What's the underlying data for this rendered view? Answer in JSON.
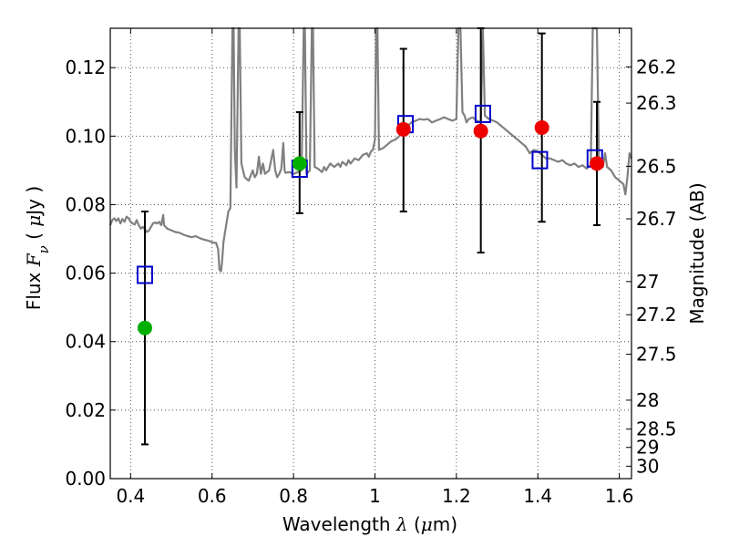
{
  "chart_data": {
    "type": "scatter",
    "title": "",
    "xlabel": "Wavelength  λ (μm)",
    "xlabel_parts": [
      "Wavelength  ",
      "λ",
      " (",
      "μ",
      "m)"
    ],
    "ylabel": "Flux  Fν  ( μJy )",
    "ylabel_parts": [
      "Flux  ",
      "F",
      "ν",
      "  ( ",
      "μ",
      "Jy )"
    ],
    "y2label": "Magnitude (AB)",
    "xlim": [
      0.35,
      1.63
    ],
    "ylim": [
      0.0,
      0.1315
    ],
    "xticks": [
      {
        "value": 0.4,
        "label": "0.4"
      },
      {
        "value": 0.6,
        "label": "0.6"
      },
      {
        "value": 0.8,
        "label": "0.8"
      },
      {
        "value": 1.0,
        "label": "1"
      },
      {
        "value": 1.2,
        "label": "1.2"
      },
      {
        "value": 1.4,
        "label": "1.4"
      },
      {
        "value": 1.6,
        "label": "1.6"
      }
    ],
    "yticks": [
      {
        "value": 0.0,
        "label": "0.00"
      },
      {
        "value": 0.02,
        "label": "0.02"
      },
      {
        "value": 0.04,
        "label": "0.04"
      },
      {
        "value": 0.06,
        "label": "0.06"
      },
      {
        "value": 0.08,
        "label": "0.08"
      },
      {
        "value": 0.1,
        "label": "0.10"
      },
      {
        "value": 0.12,
        "label": "0.12"
      }
    ],
    "y2ticks": [
      {
        "value": 26.2,
        "label": "26.2"
      },
      {
        "value": 26.3,
        "label": "26.3"
      },
      {
        "value": 26.5,
        "label": "26.5"
      },
      {
        "value": 26.7,
        "label": "26.7"
      },
      {
        "value": 27,
        "label": "27"
      },
      {
        "value": 27.2,
        "label": "27.2"
      },
      {
        "value": 27.5,
        "label": "27.5"
      },
      {
        "value": 28,
        "label": "28"
      },
      {
        "value": 28.5,
        "label": "28.5"
      },
      {
        "value": 29,
        "label": "29"
      },
      {
        "value": 30,
        "label": "30"
      }
    ],
    "grid": true,
    "colors": {
      "spectrum": "#808080",
      "model": "#0000cc",
      "obs_green": "#00b000",
      "obs_red": "#ee0000",
      "errorbar": "#000000"
    },
    "spectrum": [
      [
        0.35,
        0.074
      ],
      [
        0.355,
        0.0755
      ],
      [
        0.36,
        0.076
      ],
      [
        0.365,
        0.0752
      ],
      [
        0.37,
        0.076
      ],
      [
        0.375,
        0.0745
      ],
      [
        0.38,
        0.0758
      ],
      [
        0.385,
        0.075
      ],
      [
        0.39,
        0.0765
      ],
      [
        0.395,
        0.076
      ],
      [
        0.4,
        0.075
      ],
      [
        0.405,
        0.0745
      ],
      [
        0.41,
        0.0742
      ],
      [
        0.415,
        0.0755
      ],
      [
        0.42,
        0.074
      ],
      [
        0.425,
        0.073
      ],
      [
        0.43,
        0.0735
      ],
      [
        0.435,
        0.0728
      ],
      [
        0.44,
        0.072
      ],
      [
        0.445,
        0.0725
      ],
      [
        0.45,
        0.0735
      ],
      [
        0.455,
        0.0745
      ],
      [
        0.46,
        0.0748
      ],
      [
        0.465,
        0.0745
      ],
      [
        0.47,
        0.075
      ],
      [
        0.475,
        0.074
      ],
      [
        0.48,
        0.077
      ],
      [
        0.482,
        0.074
      ],
      [
        0.49,
        0.073
      ],
      [
        0.5,
        0.0725
      ],
      [
        0.51,
        0.072
      ],
      [
        0.52,
        0.0718
      ],
      [
        0.53,
        0.0712
      ],
      [
        0.54,
        0.0708
      ],
      [
        0.55,
        0.0705
      ],
      [
        0.56,
        0.0708
      ],
      [
        0.57,
        0.0702
      ],
      [
        0.58,
        0.0698
      ],
      [
        0.59,
        0.0695
      ],
      [
        0.6,
        0.069
      ],
      [
        0.61,
        0.0688
      ],
      [
        0.615,
        0.067
      ],
      [
        0.618,
        0.061
      ],
      [
        0.622,
        0.0605
      ],
      [
        0.625,
        0.064
      ],
      [
        0.628,
        0.069
      ],
      [
        0.632,
        0.072
      ],
      [
        0.64,
        0.078
      ],
      [
        0.645,
        0.079
      ],
      [
        0.65,
        0.1315
      ],
      [
        0.653,
        0.1315
      ],
      [
        0.656,
        0.096
      ],
      [
        0.66,
        0.085
      ],
      [
        0.665,
        0.1315
      ],
      [
        0.668,
        0.1315
      ],
      [
        0.672,
        0.092
      ],
      [
        0.68,
        0.088
      ],
      [
        0.69,
        0.087
      ],
      [
        0.7,
        0.09
      ],
      [
        0.705,
        0.088
      ],
      [
        0.71,
        0.089
      ],
      [
        0.715,
        0.094
      ],
      [
        0.72,
        0.089
      ],
      [
        0.725,
        0.092
      ],
      [
        0.73,
        0.089
      ],
      [
        0.74,
        0.09
      ],
      [
        0.75,
        0.096
      ],
      [
        0.755,
        0.09
      ],
      [
        0.76,
        0.088
      ],
      [
        0.765,
        0.089
      ],
      [
        0.77,
        0.0905
      ],
      [
        0.775,
        0.098
      ],
      [
        0.778,
        0.09
      ],
      [
        0.78,
        0.0893
      ],
      [
        0.79,
        0.0895
      ],
      [
        0.8,
        0.089
      ],
      [
        0.81,
        0.0895
      ],
      [
        0.82,
        0.09
      ],
      [
        0.825,
        0.1315
      ],
      [
        0.828,
        0.1315
      ],
      [
        0.832,
        0.089
      ],
      [
        0.84,
        0.09
      ],
      [
        0.845,
        0.1315
      ],
      [
        0.848,
        0.1315
      ],
      [
        0.852,
        0.091
      ],
      [
        0.86,
        0.0905
      ],
      [
        0.87,
        0.0895
      ],
      [
        0.875,
        0.091
      ],
      [
        0.88,
        0.09
      ],
      [
        0.89,
        0.092
      ],
      [
        0.9,
        0.091
      ],
      [
        0.91,
        0.092
      ],
      [
        0.915,
        0.091
      ],
      [
        0.92,
        0.0925
      ],
      [
        0.93,
        0.0915
      ],
      [
        0.935,
        0.093
      ],
      [
        0.94,
        0.092
      ],
      [
        0.95,
        0.0935
      ],
      [
        0.96,
        0.093
      ],
      [
        0.97,
        0.0945
      ],
      [
        0.98,
        0.095
      ],
      [
        0.985,
        0.094
      ],
      [
        0.99,
        0.0955
      ],
      [
        0.995,
        0.096
      ],
      [
        1.0,
        0.099
      ],
      [
        1.003,
        0.1315
      ],
      [
        1.006,
        0.1315
      ],
      [
        1.01,
        0.096
      ],
      [
        1.02,
        0.0965
      ],
      [
        1.03,
        0.0975
      ],
      [
        1.04,
        0.0985
      ],
      [
        1.05,
        0.099
      ],
      [
        1.06,
        0.1
      ],
      [
        1.07,
        0.102
      ],
      [
        1.08,
        0.103
      ],
      [
        1.09,
        0.104
      ],
      [
        1.1,
        0.1045
      ],
      [
        1.11,
        0.105
      ],
      [
        1.12,
        0.1048
      ],
      [
        1.13,
        0.105
      ],
      [
        1.14,
        0.104
      ],
      [
        1.15,
        0.1045
      ],
      [
        1.16,
        0.105
      ],
      [
        1.17,
        0.1055
      ],
      [
        1.18,
        0.105
      ],
      [
        1.19,
        0.1045
      ],
      [
        1.2,
        0.105
      ],
      [
        1.205,
        0.1315
      ],
      [
        1.21,
        0.1315
      ],
      [
        1.215,
        0.107
      ],
      [
        1.22,
        0.106
      ],
      [
        1.225,
        0.104
      ],
      [
        1.23,
        0.105
      ],
      [
        1.24,
        0.1055
      ],
      [
        1.25,
        0.1045
      ],
      [
        1.26,
        0.104
      ],
      [
        1.265,
        0.1315
      ],
      [
        1.27,
        0.106
      ],
      [
        1.28,
        0.105
      ],
      [
        1.29,
        0.1045
      ],
      [
        1.3,
        0.104
      ],
      [
        1.31,
        0.103
      ],
      [
        1.32,
        0.102
      ],
      [
        1.33,
        0.101
      ],
      [
        1.34,
        0.1
      ],
      [
        1.35,
        0.099
      ],
      [
        1.36,
        0.098
      ],
      [
        1.37,
        0.097
      ],
      [
        1.38,
        0.095
      ],
      [
        1.39,
        0.096
      ],
      [
        1.4,
        0.0955
      ],
      [
        1.41,
        0.0945
      ],
      [
        1.42,
        0.0935
      ],
      [
        1.43,
        0.0935
      ],
      [
        1.44,
        0.093
      ],
      [
        1.45,
        0.0925
      ],
      [
        1.46,
        0.093
      ],
      [
        1.47,
        0.092
      ],
      [
        1.48,
        0.0915
      ],
      [
        1.49,
        0.092
      ],
      [
        1.5,
        0.091
      ],
      [
        1.51,
        0.0915
      ],
      [
        1.52,
        0.0905
      ],
      [
        1.53,
        0.0915
      ],
      [
        1.535,
        0.1315
      ],
      [
        1.545,
        0.1315
      ],
      [
        1.55,
        0.092
      ],
      [
        1.56,
        0.091
      ],
      [
        1.565,
        0.095
      ],
      [
        1.57,
        0.091
      ],
      [
        1.58,
        0.09
      ],
      [
        1.59,
        0.088
      ],
      [
        1.6,
        0.087
      ],
      [
        1.61,
        0.086
      ],
      [
        1.615,
        0.083
      ],
      [
        1.62,
        0.088
      ],
      [
        1.625,
        0.095
      ],
      [
        1.63,
        0.0935
      ]
    ],
    "model_points": [
      {
        "x": 0.435,
        "y": 0.0595
      },
      {
        "x": 0.815,
        "y": 0.0905
      },
      {
        "x": 1.075,
        "y": 0.1035
      },
      {
        "x": 1.265,
        "y": 0.1065
      },
      {
        "x": 1.405,
        "y": 0.093
      },
      {
        "x": 1.54,
        "y": 0.0935
      }
    ],
    "observed_points": [
      {
        "x": 0.435,
        "y": 0.044,
        "err": [
          0.01,
          0.078
        ],
        "color": "green"
      },
      {
        "x": 0.815,
        "y": 0.092,
        "err": [
          0.0775,
          0.107
        ],
        "color": "green"
      },
      {
        "x": 1.07,
        "y": 0.102,
        "err": [
          0.078,
          0.1255
        ],
        "color": "red"
      },
      {
        "x": 1.26,
        "y": 0.1015,
        "err": [
          0.066,
          0.1315
        ],
        "color": "red"
      },
      {
        "x": 1.41,
        "y": 0.1025,
        "err": [
          0.075,
          0.13
        ],
        "color": "red"
      },
      {
        "x": 1.545,
        "y": 0.092,
        "err": [
          0.074,
          0.11
        ],
        "color": "red"
      }
    ]
  }
}
